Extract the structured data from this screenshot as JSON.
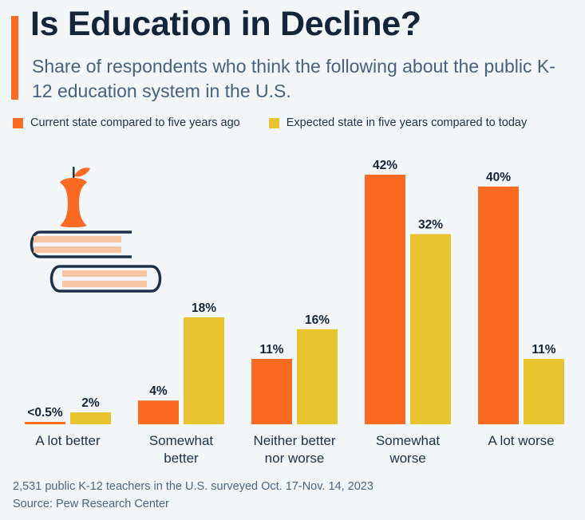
{
  "header": {
    "title": "Is Education in Decline?",
    "subtitle": "Share of respondents who think the following about the public K-12 education system in the U.S."
  },
  "colors": {
    "accent": "#fb6a22",
    "orange": "#fb6a22",
    "yellow": "#e8c330",
    "book_fill": "#f8c4a3",
    "book_outline": "#1d3148"
  },
  "chart_data": {
    "type": "bar",
    "categories": [
      [
        "A lot better"
      ],
      [
        "Somewhat",
        "better"
      ],
      [
        "Neither better",
        "nor worse"
      ],
      [
        "Somewhat",
        "worse"
      ],
      [
        "A lot worse"
      ]
    ],
    "series": [
      {
        "name": "Current state compared to five years ago",
        "values": [
          0.4,
          4,
          11,
          42,
          40
        ],
        "labels": [
          "<0.5%",
          "4%",
          "11%",
          "42%",
          "40%"
        ]
      },
      {
        "name": "Expected state in five years compared to today",
        "values": [
          2,
          18,
          16,
          32,
          11
        ],
        "labels": [
          "2%",
          "18%",
          "16%",
          "32%",
          "11%"
        ]
      }
    ],
    "ylim": [
      0,
      42
    ],
    "grid": false,
    "legend": "top-left"
  },
  "footer": {
    "note": "2,531 public K-12 teachers in the U.S. surveyed Oct. 17-Nov. 14, 2023",
    "source": "Source: Pew Research Center"
  }
}
